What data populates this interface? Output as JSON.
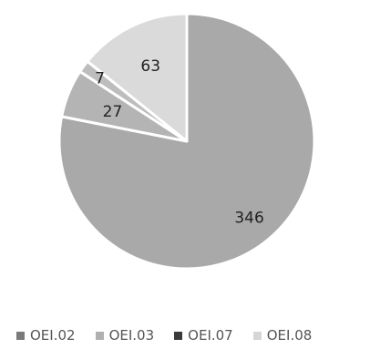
{
  "chart_data": {
    "type": "pie",
    "title": "",
    "categories": [
      "OEI.02",
      "OEI.03",
      "OEI.07",
      "OEI.08"
    ],
    "values": [
      346,
      27,
      7,
      63
    ],
    "data_labels": [
      "346",
      "27",
      "7",
      "63"
    ],
    "colors": [
      "#a9a9a9",
      "#b4b4b4",
      "#bdbdbd",
      "#dadada"
    ],
    "legend_colors": [
      "#7a7a7a",
      "#b0b0b0",
      "#3a3a3a",
      "#d6d6d6"
    ],
    "legend_position": "bottom",
    "start_angle": "12 o'clock",
    "direction": "clockwise"
  }
}
